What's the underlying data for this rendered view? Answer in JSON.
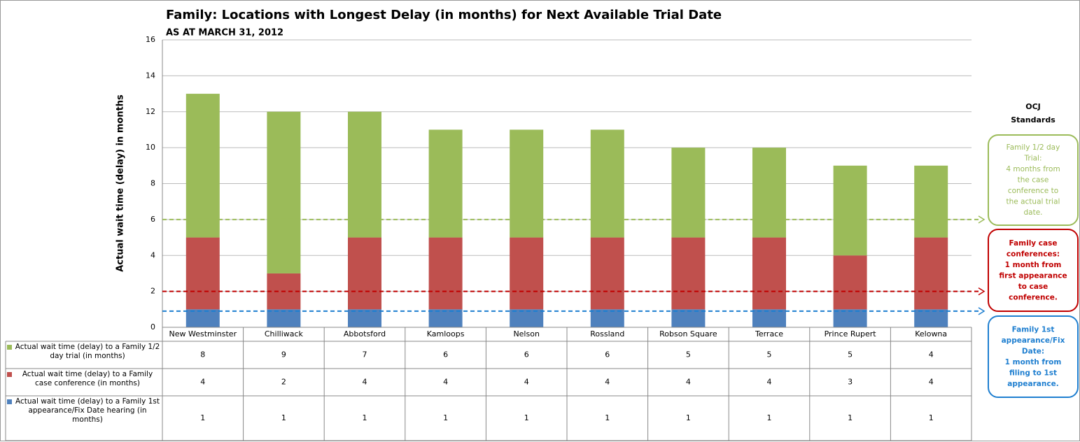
{
  "chart_data": {
    "type": "stacked_bar",
    "title": "Family: Locations with Longest Delay (in months) for Next Available Trial Date",
    "subtitle": "AS AT MARCH 31, 2012",
    "y_label": "Actual wait time (delay) in months",
    "categories": [
      "New Westminster",
      "Chilliwack",
      "Abbotsford",
      "Kamloops",
      "Nelson",
      "Rossland",
      "Robson Square",
      "Terrace",
      "Prince Rupert",
      "Kelowna"
    ],
    "series": [
      {
        "name": "Actual wait time (delay) to a Family 1/2 day trial (in months)",
        "color": "#9bbb59",
        "values": [
          8,
          9,
          7,
          6,
          6,
          6,
          5,
          5,
          5,
          4
        ]
      },
      {
        "name": "Actual wait time (delay) to a Family case conference (in months)",
        "color": "#c0504d",
        "values": [
          4,
          2,
          4,
          4,
          4,
          4,
          4,
          4,
          3,
          4
        ]
      },
      {
        "name": "Actual wait time (delay) to a Family 1st appearance/Fix Date hearing (in months)",
        "color": "#4f81bd",
        "values": [
          1,
          1,
          1,
          1,
          1,
          1,
          1,
          1,
          1,
          1
        ]
      }
    ],
    "ylim": [
      0,
      16
    ],
    "yticks": [
      0,
      2,
      4,
      6,
      8,
      10,
      12,
      14,
      16
    ],
    "grid": true,
    "standards_title": [
      "OCJ",
      "Standards"
    ],
    "standards": [
      {
        "value": 6,
        "color": "#9bbb59",
        "lines": [
          "Family 1/2 day",
          "Trial:",
          "4 months from",
          "the case",
          "conference to",
          "the actual trial",
          "date."
        ]
      },
      {
        "value": 2,
        "color": "#c00000",
        "lines": [
          "Family case",
          "conferences:",
          "1 month from",
          "first appearance",
          "to case",
          "conference."
        ]
      },
      {
        "value": 0.9,
        "color": "#1f7fd0",
        "lines": [
          "Family 1st",
          "appearance/Fix",
          "Date:",
          "1 month from",
          "filing to 1st",
          "appearance."
        ]
      }
    ]
  }
}
